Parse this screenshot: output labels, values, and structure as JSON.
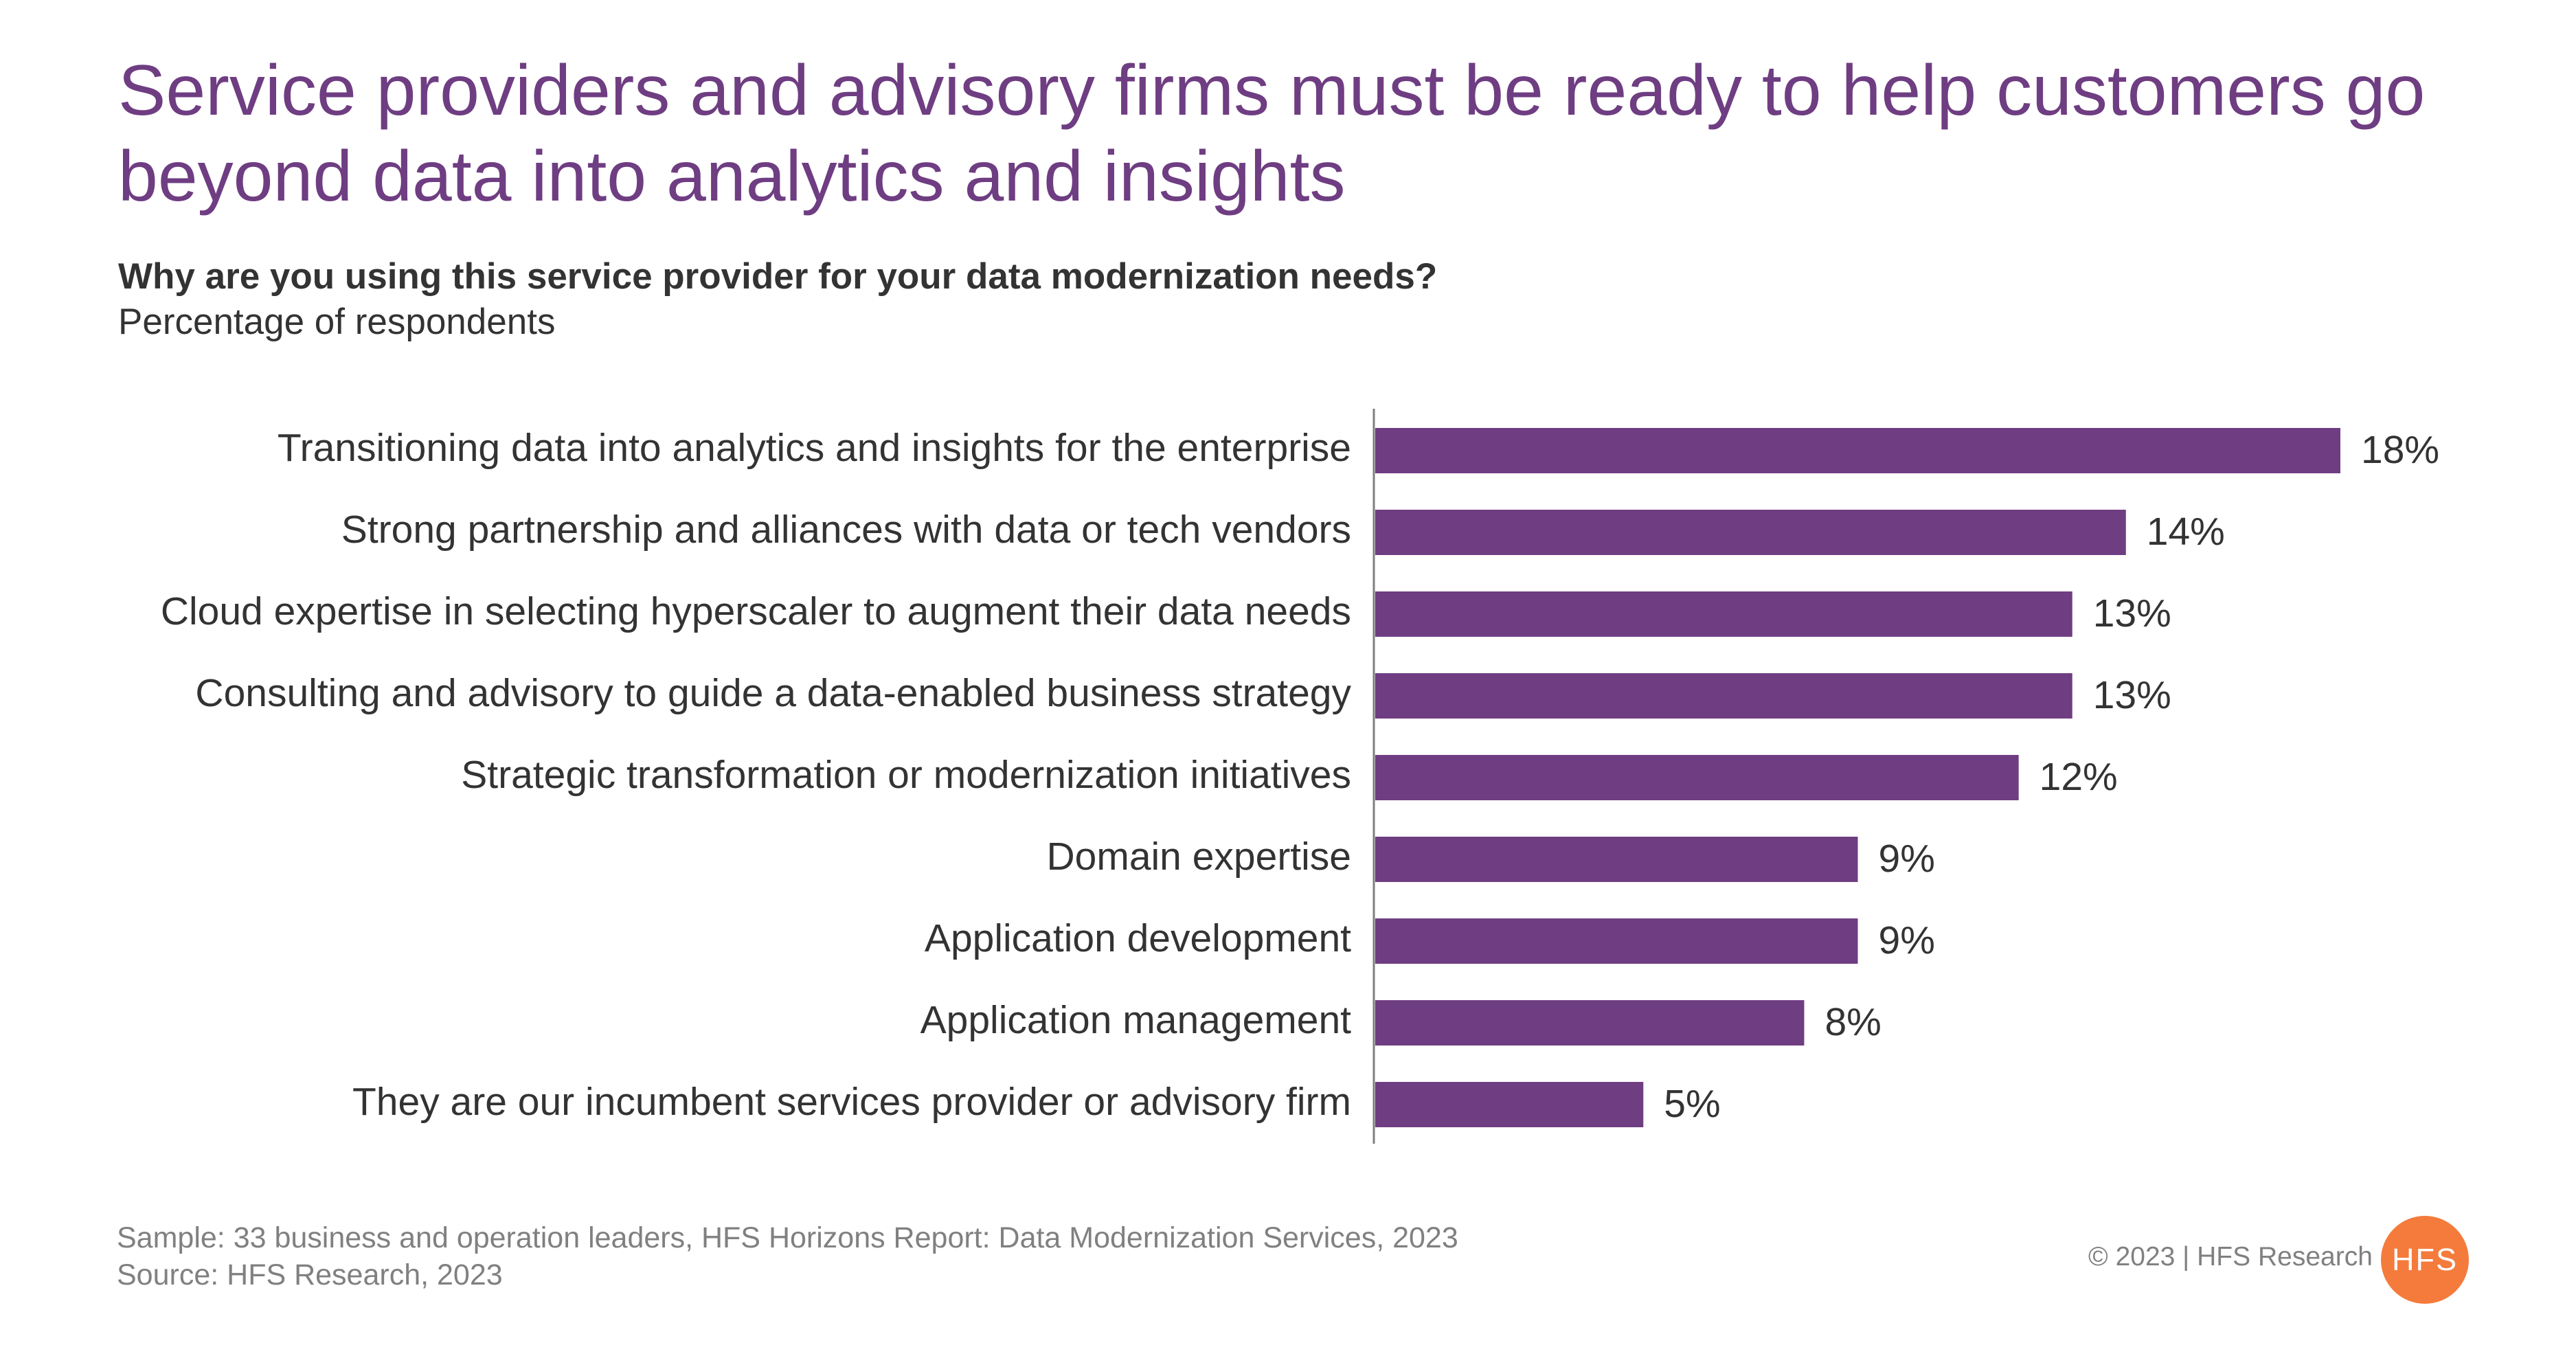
{
  "title": "Service providers and advisory firms must be ready to help customers go beyond data into analytics and insights",
  "question": "Why are you using this service provider for your data modernization needs?",
  "subtitle": "Percentage of respondents",
  "footer": {
    "sample": "Sample: 33 business and operation leaders, HFS Horizons Report: Data Modernization Services, 2023",
    "source": "Source: HFS Research, 2023",
    "copyright": "© 2023 | HFS Research",
    "logo_text": "HFS"
  },
  "colors": {
    "bar": "#6F3D82",
    "title": "#6F3D82",
    "logo": "#F47B3C",
    "axis": "#7f7f7f"
  },
  "chart_data": {
    "type": "bar",
    "orientation": "horizontal",
    "categories": [
      "Transitioning data into analytics and insights for the enterprise",
      "Strong partnership and alliances with data or tech vendors",
      "Cloud expertise in selecting hyperscaler to augment their data needs",
      "Consulting and advisory to guide a data-enabled business strategy",
      "Strategic transformation or modernization initiatives",
      "Domain expertise",
      "Application development",
      "Application management",
      "They are our incumbent services provider or advisory firm"
    ],
    "values": [
      18,
      14,
      13,
      13,
      12,
      9,
      9,
      8,
      5
    ],
    "value_labels": [
      "18%",
      "14%",
      "13%",
      "13%",
      "12%",
      "9%",
      "9%",
      "8%",
      "5%"
    ],
    "unit": "%",
    "xlim": [
      0,
      18
    ],
    "grid": false,
    "legend": "none"
  }
}
